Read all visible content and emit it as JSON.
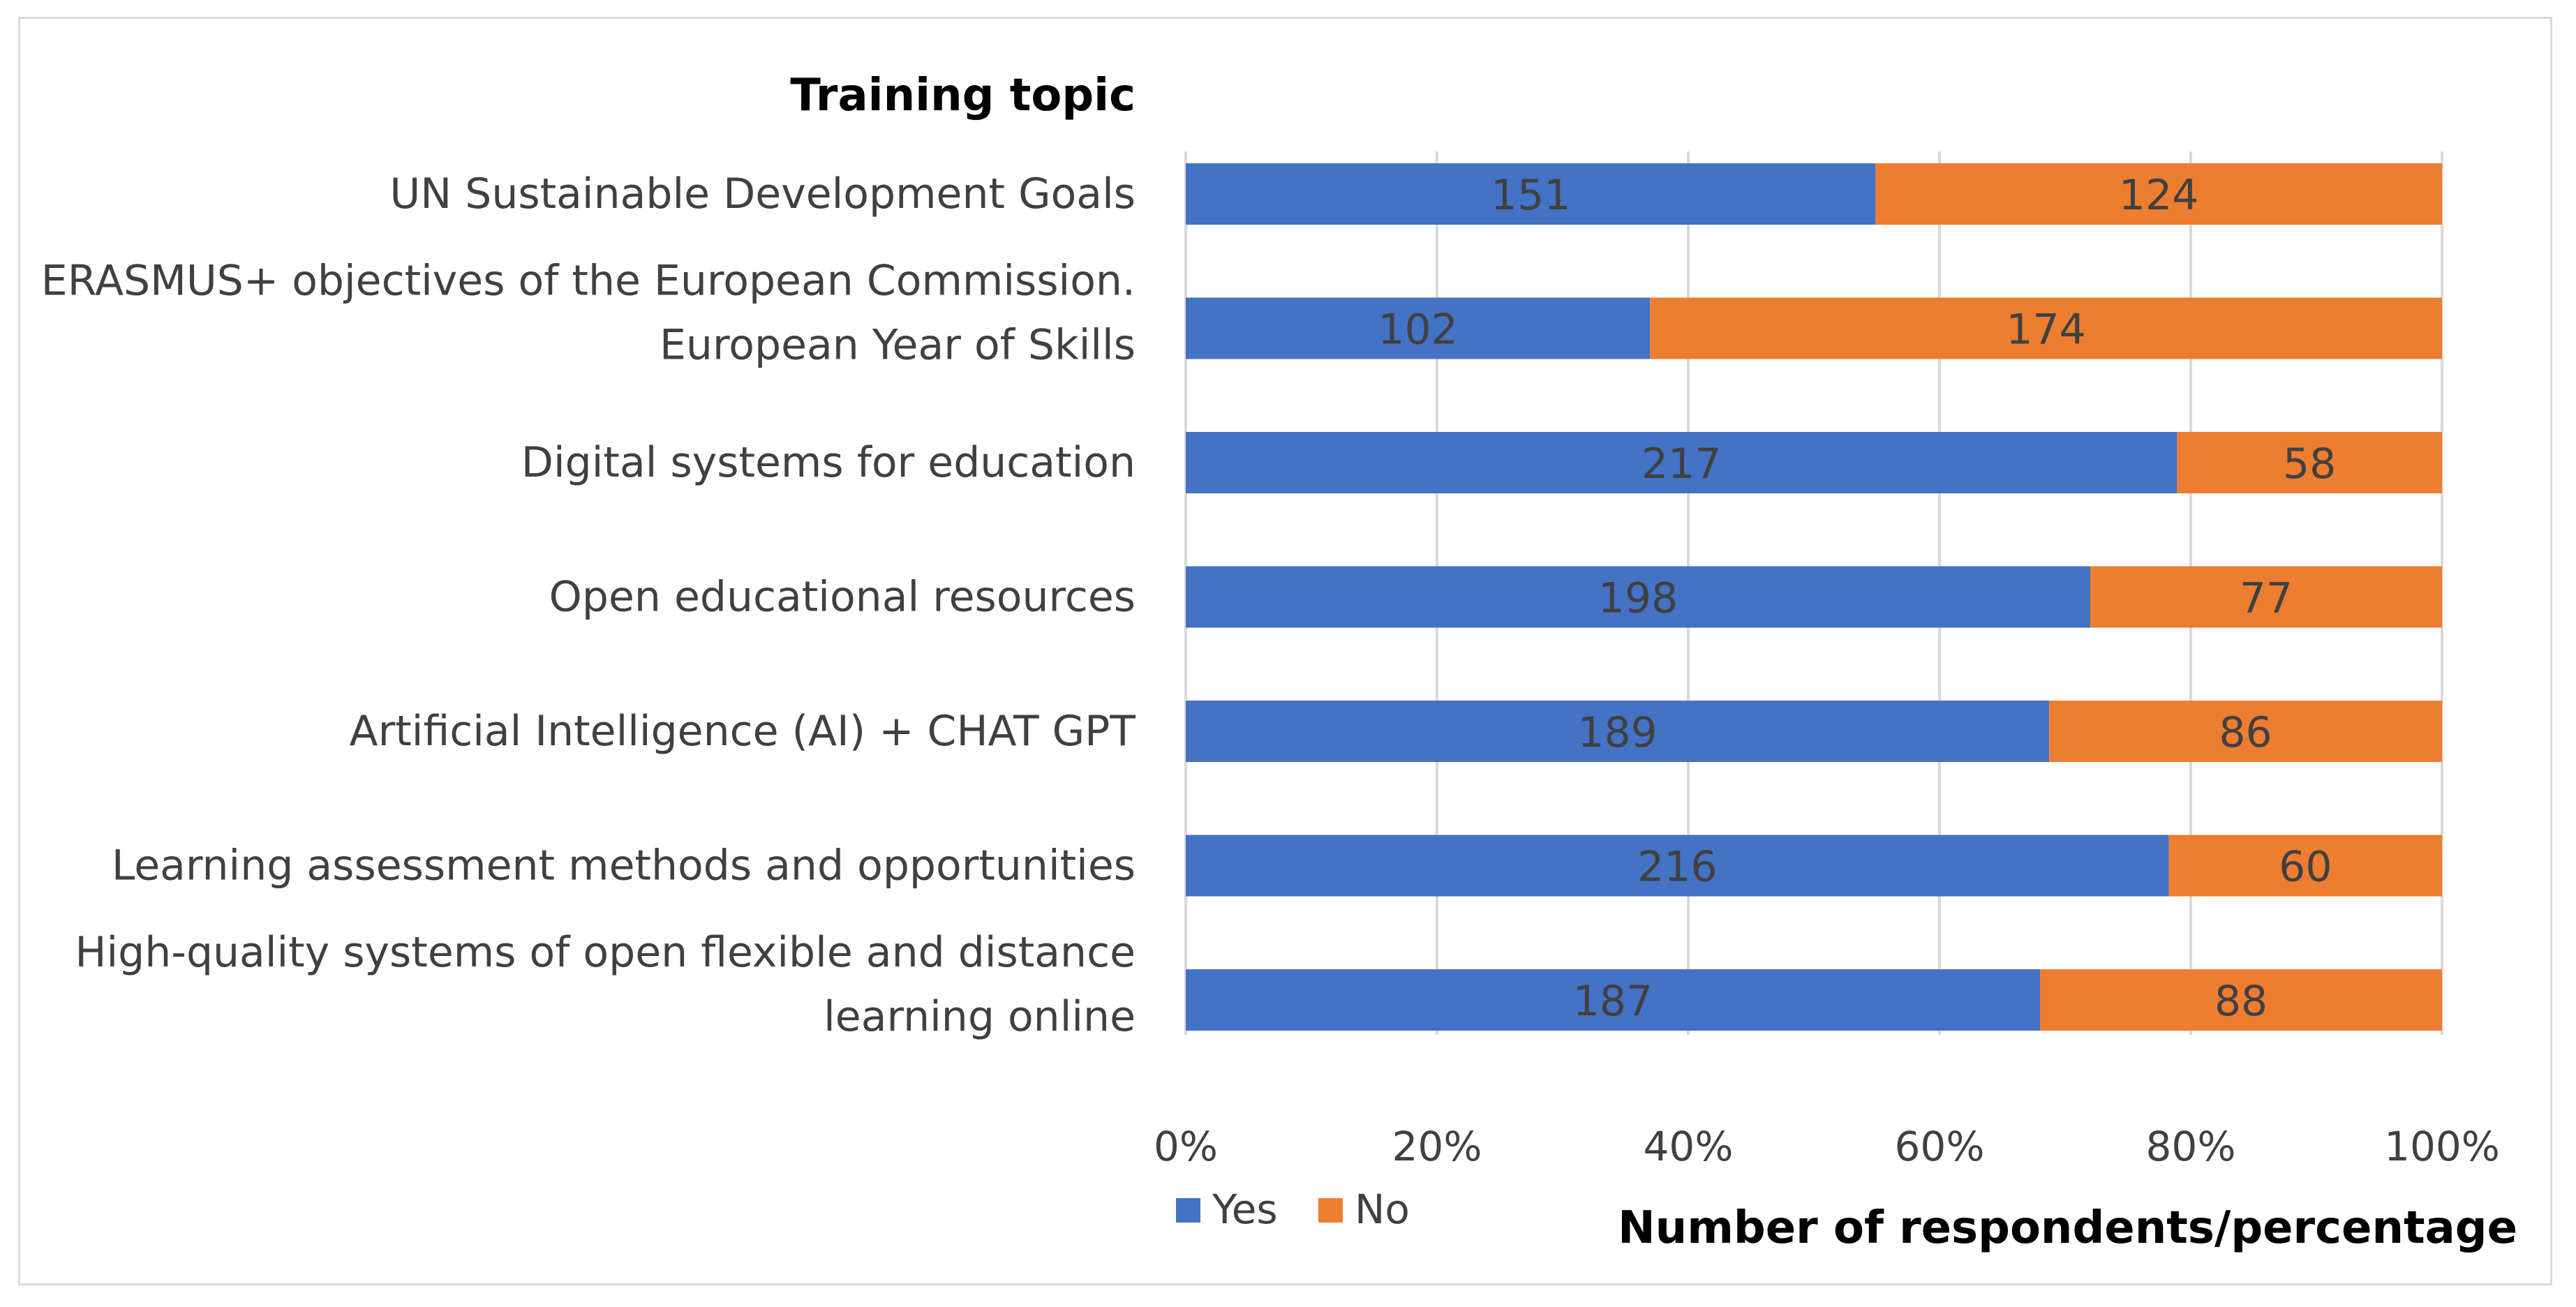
{
  "chart_data": {
    "type": "bar",
    "orientation": "horizontal",
    "stacked": "percent",
    "y_axis_title": "Training topic",
    "x_axis_title": "Number of respondents/percentage",
    "categories": [
      [
        "UN Sustainable Development Goals"
      ],
      [
        "ERASMUS+ objectives of the European Commission.",
        "European Year of Skills"
      ],
      [
        "Digital systems for education"
      ],
      [
        "Open educational resources"
      ],
      [
        "Artificial Intelligence (AI) + CHAT GPT"
      ],
      [
        "Learning assessment methods and opportunities"
      ],
      [
        "High-quality systems of open flexible and distance",
        "learning online"
      ]
    ],
    "series": [
      {
        "name": "Yes",
        "color": "#4472c4",
        "values": [
          151,
          102,
          217,
          198,
          189,
          216,
          187
        ]
      },
      {
        "name": "No",
        "color": "#ed7d31",
        "values": [
          124,
          174,
          58,
          77,
          86,
          60,
          88
        ]
      }
    ],
    "x_ticks": [
      "0%",
      "20%",
      "40%",
      "60%",
      "80%",
      "100%"
    ],
    "xlim": [
      0,
      100
    ],
    "grid": true,
    "legend_position": "bottom-left"
  }
}
